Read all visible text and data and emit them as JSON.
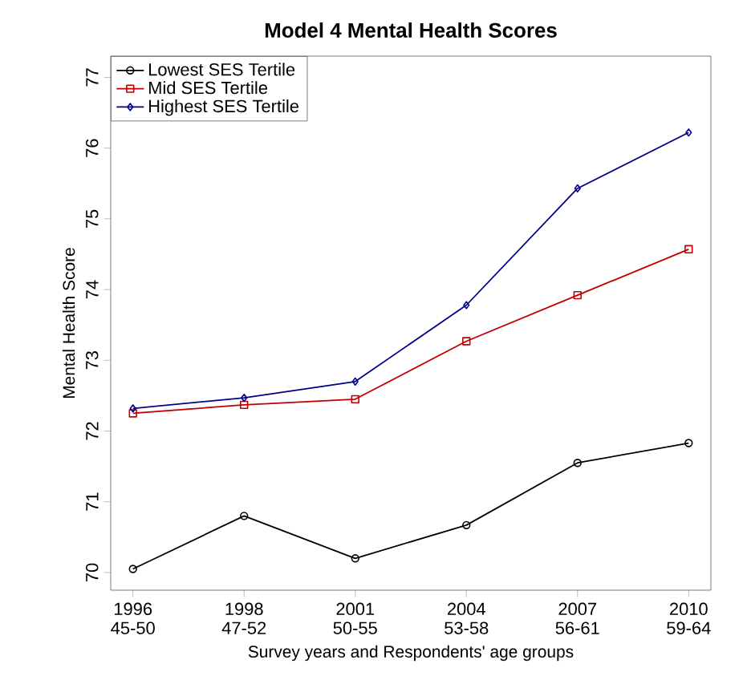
{
  "chart_data": {
    "type": "line",
    "title": "Model 4 Mental Health Scores",
    "xlabel": "Survey years and Respondents' age groups",
    "ylabel": "Mental Health Score",
    "categories": [
      "1996 45-50",
      "1998 47-52",
      "2001 50-55",
      "2004 53-58",
      "2007 56-61",
      "2010 59-64"
    ],
    "series": [
      {
        "name": "Lowest SES Tertile",
        "color": "#000000",
        "marker": "circle",
        "values": [
          70.05,
          70.8,
          70.2,
          70.67,
          71.55,
          71.83
        ]
      },
      {
        "name": "Mid SES Tertile",
        "color": "#c00000",
        "marker": "square",
        "values": [
          72.25,
          72.37,
          72.45,
          73.27,
          73.92,
          74.57
        ]
      },
      {
        "name": "Highest SES Tertile",
        "color": "#00008b",
        "marker": "diamond",
        "values": [
          72.32,
          72.47,
          72.7,
          73.78,
          75.43,
          76.22
        ]
      }
    ],
    "ylim": [
      69.75,
      77.3
    ],
    "yticks": [
      70,
      71,
      72,
      73,
      74,
      75,
      76,
      77
    ],
    "legend": "top left",
    "line_style": "solid"
  }
}
